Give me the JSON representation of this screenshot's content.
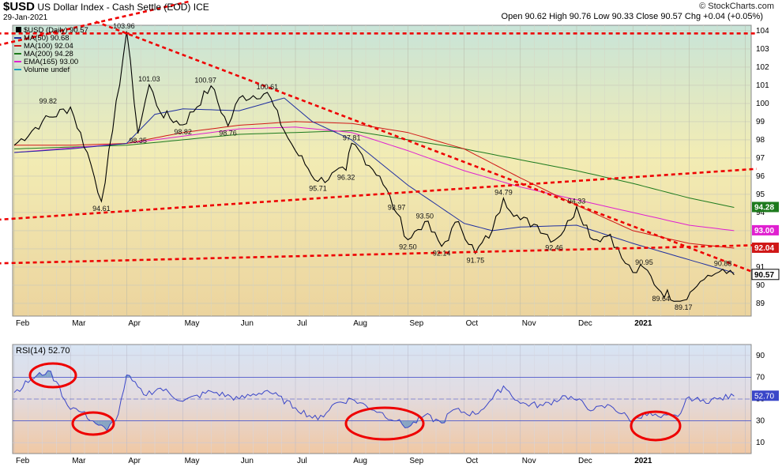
{
  "header": {
    "symbol": "$USD",
    "name": "US Dollar Index - Cash Settle (EOD)",
    "exchange": "ICE",
    "date": "29-Jan-2021",
    "ohlc": "Open 90.62  High 90.76  Low 90.33  Close 90.57  Chg +0.04 (+0.05%)",
    "brand": "© StockCharts.com"
  },
  "chart_data": [
    {
      "type": "line",
      "title": "$USD (Daily) 90.57",
      "legend": [
        {
          "label": "$USD (Daily) 90.57",
          "color": "#000000"
        },
        {
          "label": "MA(50) 90.68",
          "color": "#1f2fa0"
        },
        {
          "label": "MA(100) 92.04",
          "color": "#d01818"
        },
        {
          "label": "MA(200) 94.28",
          "color": "#1d7a1d"
        },
        {
          "label": "EMA(165) 93.00",
          "color": "#e020d0"
        },
        {
          "label": "Volume undef",
          "color": "#20a0c0"
        }
      ],
      "x_ticks": [
        "Feb",
        "Mar",
        "Apr",
        "May",
        "Jun",
        "Jul",
        "Aug",
        "Sep",
        "Oct",
        "Nov",
        "Dec",
        "2021"
      ],
      "y_ticks": [
        89,
        90,
        91,
        92,
        93,
        94,
        95,
        96,
        97,
        98,
        99,
        100,
        101,
        102,
        103,
        104
      ],
      "ylim": [
        88.3,
        104.3
      ],
      "price": {
        "months": [
          0,
          0.5,
          1.0,
          1.3,
          1.55,
          1.75,
          2.0,
          2.2,
          2.4,
          2.6,
          3.0,
          3.5,
          3.8,
          4.0,
          4.5,
          4.8,
          5.0,
          5.4,
          5.9,
          6.0,
          6.5,
          6.8,
          7.0,
          7.3,
          7.6,
          7.9,
          8.2,
          8.5,
          8.7,
          9.0,
          9.3,
          9.6,
          9.9,
          10.0,
          10.3,
          10.6,
          10.8,
          11.0,
          11.2,
          11.5,
          11.9
        ],
        "values": [
          97.7,
          99.0,
          99.8,
          97.3,
          94.61,
          98.5,
          103.96,
          98.35,
          101.03,
          99.5,
          98.82,
          100.97,
          98.76,
          100.3,
          100.61,
          98.5,
          97.4,
          95.71,
          96.32,
          97.81,
          96.0,
          93.97,
          92.5,
          93.5,
          92.14,
          93.5,
          91.75,
          93.0,
          94.79,
          93.6,
          93.3,
          92.46,
          93.6,
          94.33,
          92.5,
          92.8,
          91.5,
          90.7,
          90.95,
          89.64,
          89.17
        ]
      },
      "tail": {
        "months": [
          11.9,
          12.2,
          12.4,
          12.6,
          12.8
        ],
        "values": [
          89.17,
          90.2,
          90.5,
          90.88,
          90.57
        ]
      },
      "series": [
        {
          "name": "MA(50)",
          "months": [
            0,
            1,
            2,
            2.5,
            3,
            4,
            4.8,
            5.3,
            6,
            7,
            8,
            8.5,
            9,
            10,
            11,
            12,
            12.8
          ],
          "values": [
            97.3,
            97.5,
            97.8,
            99.4,
            99.7,
            99.6,
            100.3,
            99.0,
            98.0,
            95.5,
            93.4,
            93.0,
            93.2,
            93.3,
            92.3,
            91.4,
            90.68
          ]
        },
        {
          "name": "MA(100)",
          "months": [
            0,
            1,
            2,
            3,
            4,
            5,
            6,
            7,
            8,
            9,
            10,
            11,
            12,
            12.8
          ],
          "values": [
            97.7,
            97.7,
            97.8,
            98.4,
            98.8,
            99.0,
            98.9,
            98.4,
            97.5,
            95.9,
            94.4,
            93.0,
            92.3,
            92.04
          ]
        },
        {
          "name": "MA(200)",
          "months": [
            0,
            2,
            4,
            6,
            7,
            8,
            9,
            10,
            11,
            12,
            12.8
          ],
          "values": [
            97.5,
            97.7,
            98.3,
            98.5,
            98.0,
            97.5,
            96.9,
            96.3,
            95.6,
            94.8,
            94.28
          ]
        },
        {
          "name": "EMA(165)",
          "months": [
            0,
            2,
            4,
            5,
            6,
            7,
            8,
            9,
            10,
            11,
            12,
            12.8
          ],
          "values": [
            97.3,
            97.8,
            98.6,
            98.7,
            98.4,
            97.4,
            96.3,
            95.4,
            94.7,
            94.0,
            93.3,
            93.0
          ]
        }
      ],
      "trendlines": [
        {
          "m1": -0.3,
          "v1": 103.2,
          "m2": 3.1,
          "v2": 105.6
        },
        {
          "m1": -0.3,
          "v1": 103.85,
          "m2": 13.2,
          "v2": 103.85
        },
        {
          "m1": 1.45,
          "v1": 104.5,
          "m2": 13.2,
          "v2": 90.65
        },
        {
          "m1": -0.3,
          "v1": 93.6,
          "m2": 13.2,
          "v2": 96.4
        },
        {
          "m1": -0.3,
          "v1": 91.2,
          "m2": 13.2,
          "v2": 92.2
        }
      ],
      "annotations": [
        {
          "text": "99.82",
          "m": 0.6,
          "v": 99.82
        },
        {
          "text": "94.61",
          "m": 1.55,
          "v": 94.61
        },
        {
          "text": "103.96",
          "m": 1.95,
          "v": 103.96
        },
        {
          "text": "98.35",
          "m": 2.2,
          "v": 98.35
        },
        {
          "text": "101.03",
          "m": 2.4,
          "v": 101.03
        },
        {
          "text": "100.97",
          "m": 3.4,
          "v": 100.97
        },
        {
          "text": "98.82",
          "m": 3.0,
          "v": 98.82
        },
        {
          "text": "98.76",
          "m": 3.8,
          "v": 98.76
        },
        {
          "text": "100.61",
          "m": 4.5,
          "v": 100.61
        },
        {
          "text": "95.71",
          "m": 5.4,
          "v": 95.71
        },
        {
          "text": "96.32",
          "m": 5.9,
          "v": 96.32
        },
        {
          "text": "97.81",
          "m": 6.0,
          "v": 97.81
        },
        {
          "text": "93.97",
          "m": 6.8,
          "v": 93.97
        },
        {
          "text": "92.50",
          "m": 7.0,
          "v": 92.5
        },
        {
          "text": "93.50",
          "m": 7.3,
          "v": 93.5
        },
        {
          "text": "92.14",
          "m": 7.6,
          "v": 92.14
        },
        {
          "text": "91.75",
          "m": 8.2,
          "v": 91.75
        },
        {
          "text": "94.79",
          "m": 8.7,
          "v": 94.79
        },
        {
          "text": "92.46",
          "m": 9.6,
          "v": 92.46
        },
        {
          "text": "94.33",
          "m": 10.0,
          "v": 94.33
        },
        {
          "text": "90.95",
          "m": 11.2,
          "v": 90.95
        },
        {
          "text": "89.64",
          "m": 11.5,
          "v": 89.64
        },
        {
          "text": "89.17",
          "m": 11.9,
          "v": 89.17
        },
        {
          "text": "90.88",
          "m": 12.6,
          "v": 90.88
        }
      ],
      "right_tags": [
        {
          "text": "94.28",
          "v": 94.28,
          "color": "#1d7a1d"
        },
        {
          "text": "93.00",
          "v": 93.0,
          "color": "#e020d0"
        },
        {
          "text": "92.04",
          "v": 92.04,
          "color": "#d01818"
        },
        {
          "text": "90.57",
          "v": 90.57,
          "color": "#000000"
        }
      ]
    },
    {
      "type": "line",
      "title": "RSI(14) 52.70",
      "x_ticks": [
        "Feb",
        "Mar",
        "Apr",
        "May",
        "Jun",
        "Jul",
        "Aug",
        "Sep",
        "Oct",
        "Nov",
        "Dec",
        "2021"
      ],
      "y_ticks": [
        10,
        30,
        50,
        70,
        90
      ],
      "ylim": [
        0,
        100
      ],
      "reference_lines": [
        70,
        30
      ],
      "rsi": {
        "months": [
          0,
          0.3,
          0.6,
          0.75,
          0.95,
          1.2,
          1.5,
          1.65,
          1.85,
          2.0,
          2.3,
          2.6,
          3.0,
          3.5,
          4.0,
          4.5,
          5.0,
          5.4,
          5.7,
          6.0,
          6.5,
          6.8,
          7.0,
          7.3,
          7.6,
          7.8,
          8.2,
          8.5,
          8.7,
          9.0,
          9.4,
          9.8,
          10.0,
          10.3,
          10.6,
          11.0,
          11.2,
          11.5,
          11.8,
          12.0,
          12.2,
          12.5,
          12.8
        ],
        "values": [
          56,
          68,
          76,
          66,
          44,
          38,
          26,
          21,
          36,
          72,
          54,
          60,
          48,
          57,
          50,
          58,
          42,
          31,
          46,
          50,
          38,
          30,
          24,
          35,
          28,
          40,
          36,
          50,
          62,
          46,
          44,
          53,
          49,
          40,
          44,
          30,
          37,
          33,
          34,
          52,
          48,
          50,
          52.7
        ]
      },
      "right_tag": {
        "text": "52.70",
        "v": 52.7
      }
    }
  ]
}
